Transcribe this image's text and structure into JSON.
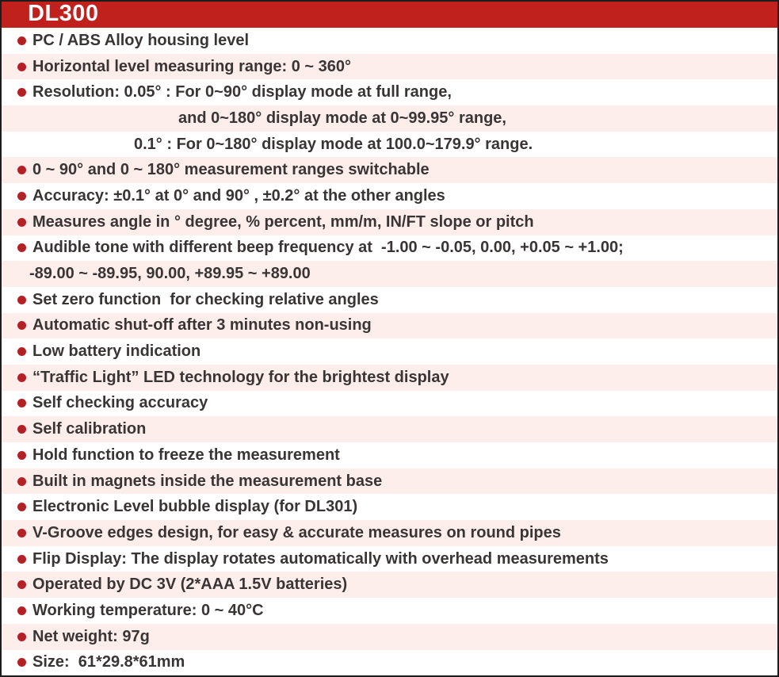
{
  "header": {
    "title": "DL300"
  },
  "colors": {
    "header_red": "#c1211d",
    "bullet_red": "#b32025",
    "row_pink": "#fdeeec",
    "row_white": "#ffffff",
    "text": "#3a3535",
    "border": "#1c1c1c"
  },
  "features": [
    {
      "style": "bullet",
      "text": "PC / ABS Alloy housing level"
    },
    {
      "style": "bullet",
      "text": "Horizontal level measuring range: 0 ~ 360°"
    },
    {
      "style": "bullet",
      "text": "Resolution: 0.05° : For 0~90° display mode at full range,"
    },
    {
      "style": "cont-deep",
      "text": "and 0~180° display mode at 0~99.95° range,"
    },
    {
      "style": "cont-mid",
      "text": "0.1° : For 0~180° display mode at 100.0~179.9° range."
    },
    {
      "style": "bullet",
      "text": "0 ~ 90° and 0 ~ 180° measurement ranges switchable"
    },
    {
      "style": "bullet",
      "text": "Accuracy: ±0.1° at 0° and 90° , ±0.2° at the other angles"
    },
    {
      "style": "bullet",
      "text": "Measures angle in ° degree, % percent, mm/m, IN/FT slope or pitch"
    },
    {
      "style": "bullet",
      "text": "Audible tone with different beep frequency at  -1.00 ~ -0.05, 0.00, +0.05 ~ +1.00;"
    },
    {
      "style": "cont-text",
      "text": "-89.00 ~ -89.95, 90.00, +89.95 ~ +89.00"
    },
    {
      "style": "bullet",
      "text": "Set zero function  for checking relative angles"
    },
    {
      "style": "bullet",
      "text": "Automatic shut-off after 3 minutes non-using"
    },
    {
      "style": "bullet",
      "text": "Low battery indication"
    },
    {
      "style": "bullet",
      "text": "“Traffic Light” LED technology for the brightest display"
    },
    {
      "style": "bullet",
      "text": "Self checking accuracy"
    },
    {
      "style": "bullet",
      "text": "Self calibration"
    },
    {
      "style": "bullet",
      "text": "Hold function to freeze the measurement"
    },
    {
      "style": "bullet",
      "text": "Built in magnets inside the measurement base"
    },
    {
      "style": "bullet",
      "text": "Electronic Level bubble display (for DL301)"
    },
    {
      "style": "bullet",
      "text": "V-Groove edges design, for easy & accurate measures on round pipes"
    },
    {
      "style": "bullet",
      "text": "Flip Display: The display rotates automatically with overhead measurements"
    },
    {
      "style": "bullet",
      "text": "Operated by DC 3V (2*AAA 1.5V batteries)"
    },
    {
      "style": "bullet",
      "text": "Working temperature: 0 ~ 40°C"
    },
    {
      "style": "bullet",
      "text": "Net weight: 97g"
    },
    {
      "style": "bullet",
      "text": "Size:  61*29.8*61mm"
    }
  ]
}
